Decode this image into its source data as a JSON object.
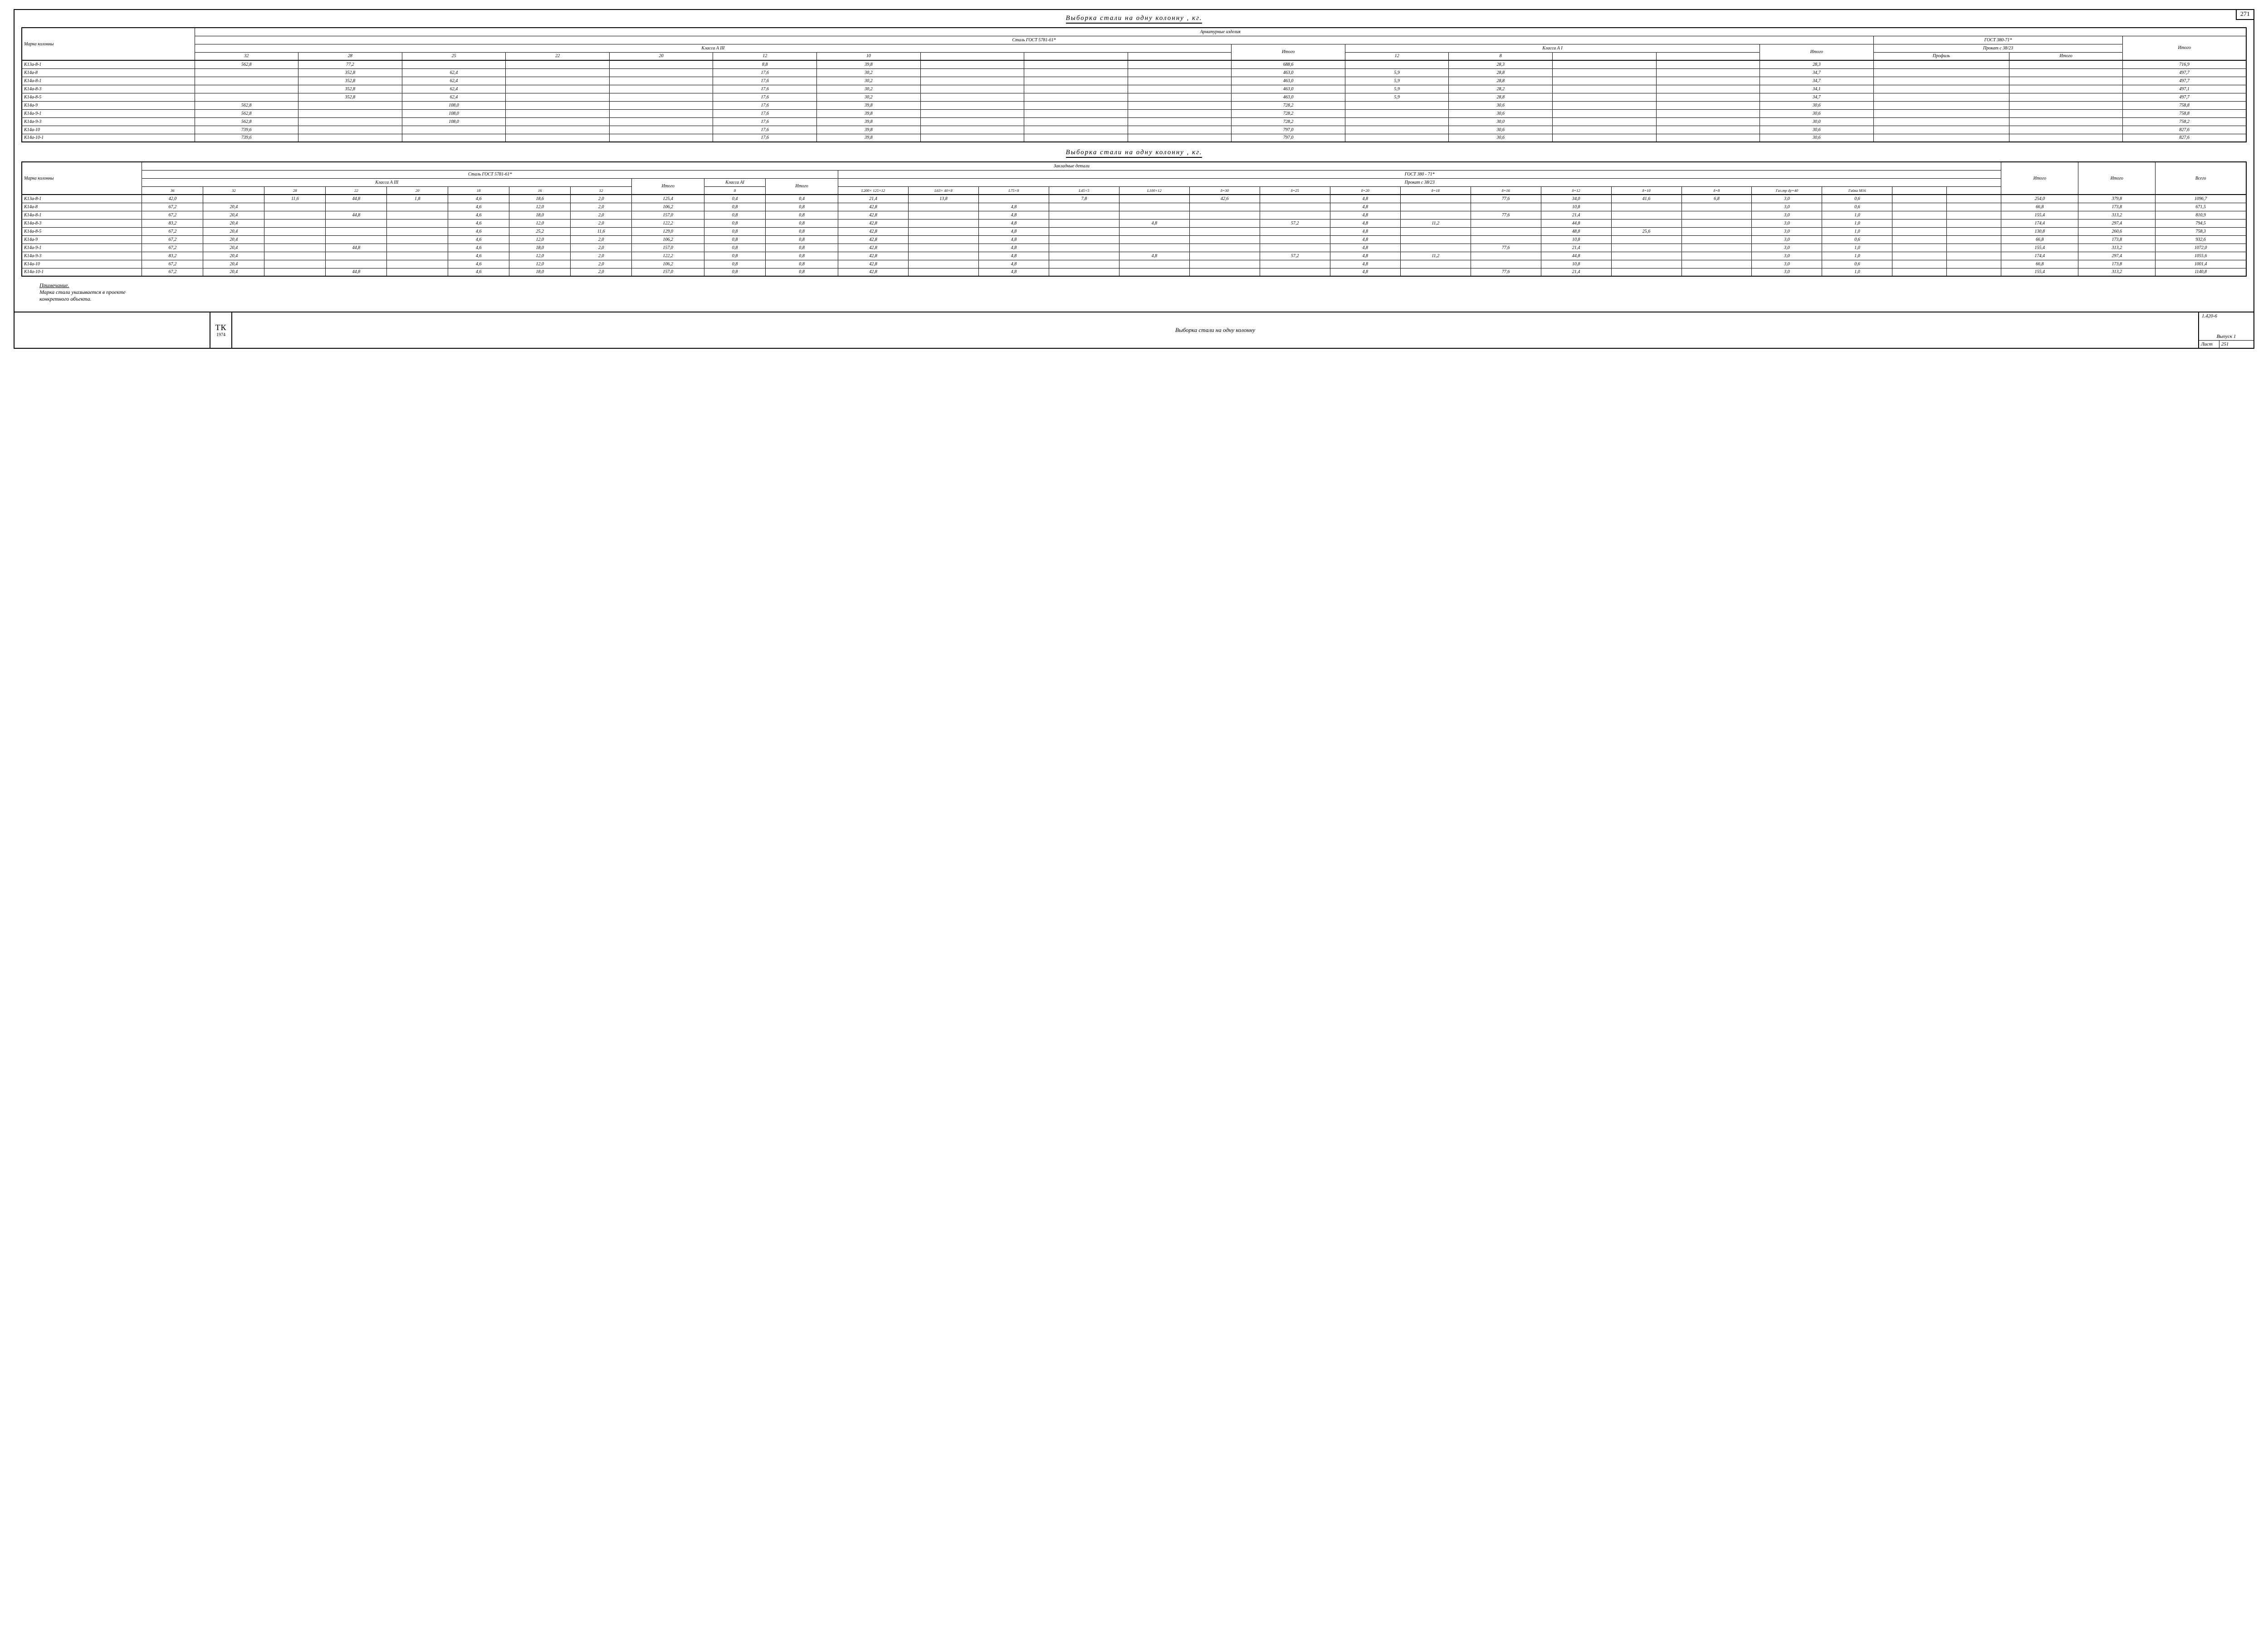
{
  "page_corner": "271",
  "title_main": "Выборка   стали   на   одну   колонну , кг.",
  "table1": {
    "super_header": "Арматурные   изделия",
    "group_steel": "Сталь    ГОСТ 5781-61*",
    "group_gost380": "ГОСТ  380-71*",
    "class_a3": "Класса А III",
    "class_a1": "Класса А I",
    "prokat": "Прокат с 38/23",
    "col_mark": "Марка колонны",
    "diam": "⌀ мм",
    "profile": "Профиль",
    "itogo": "Итого",
    "a3_diams": [
      "32",
      "28",
      "25",
      "22",
      "20",
      "12",
      "10",
      "",
      "",
      ""
    ],
    "a1_diams": [
      "12",
      "8",
      "",
      ""
    ],
    "rows": [
      {
        "m": "К13а-8-1",
        "a3": [
          "562,8",
          "77,2",
          "",
          "",
          "",
          "8,8",
          "39,8",
          "",
          "",
          ""
        ],
        "a3t": "688,6",
        "a1": [
          "",
          "28,3",
          "",
          ""
        ],
        "a1t": "28,3",
        "p": "",
        "pt": "",
        "it": "716,9"
      },
      {
        "m": "К14а-8",
        "a3": [
          "",
          "352,8",
          "62,4",
          "",
          "",
          "17,6",
          "30,2",
          "",
          "",
          ""
        ],
        "a3t": "463,0",
        "a1": [
          "5,9",
          "28,8",
          "",
          ""
        ],
        "a1t": "34,7",
        "p": "",
        "pt": "",
        "it": "497,7"
      },
      {
        "m": "К14а-8-1",
        "a3": [
          "",
          "352,8",
          "62,4",
          "",
          "",
          "17,6",
          "30,2",
          "",
          "",
          ""
        ],
        "a3t": "463,0",
        "a1": [
          "5,9",
          "28,8",
          "",
          ""
        ],
        "a1t": "34,7",
        "p": "",
        "pt": "",
        "it": "497,7"
      },
      {
        "m": "К14а-8-3",
        "a3": [
          "",
          "352,8",
          "62,4",
          "",
          "",
          "17,6",
          "30,2",
          "",
          "",
          ""
        ],
        "a3t": "463,0",
        "a1": [
          "5,9",
          "28,2",
          "",
          ""
        ],
        "a1t": "34,1",
        "p": "",
        "pt": "",
        "it": "497,1"
      },
      {
        "m": "К14а-8-5",
        "a3": [
          "",
          "352,8",
          "62,4",
          "",
          "",
          "17,6",
          "30,2",
          "",
          "",
          ""
        ],
        "a3t": "463,0",
        "a1": [
          "5,9",
          "28,8",
          "",
          ""
        ],
        "a1t": "34,7",
        "p": "",
        "pt": "",
        "it": "497,7"
      },
      {
        "m": "К14а-9",
        "a3": [
          "562,8",
          "",
          "108,0",
          "",
          "",
          "17,6",
          "39,8",
          "",
          "",
          ""
        ],
        "a3t": "728,2",
        "a1": [
          "",
          "30,6",
          "",
          ""
        ],
        "a1t": "30,6",
        "p": "",
        "pt": "",
        "it": "758,8"
      },
      {
        "m": "К14а-9-1",
        "a3": [
          "562,8",
          "",
          "108,0",
          "",
          "",
          "17,6",
          "39,8",
          "",
          "",
          ""
        ],
        "a3t": "728,2",
        "a1": [
          "",
          "30,6",
          "",
          ""
        ],
        "a1t": "30,6",
        "p": "",
        "pt": "",
        "it": "758,8"
      },
      {
        "m": "К14а-9-3",
        "a3": [
          "562,8",
          "",
          "108,0",
          "",
          "",
          "17,6",
          "39,8",
          "",
          "",
          ""
        ],
        "a3t": "728,2",
        "a1": [
          "",
          "30,0",
          "",
          ""
        ],
        "a1t": "30,0",
        "p": "",
        "pt": "",
        "it": "758,2"
      },
      {
        "m": "К14а-10",
        "a3": [
          "739,6",
          "",
          "",
          "",
          "",
          "17,6",
          "39,8",
          "",
          "",
          ""
        ],
        "a3t": "797,0",
        "a1": [
          "",
          "30,6",
          "",
          ""
        ],
        "a1t": "30,6",
        "p": "",
        "pt": "",
        "it": "827,6"
      },
      {
        "m": "К14а-10-1",
        "a3": [
          "739,6",
          "",
          "",
          "",
          "",
          "17,6",
          "39,8",
          "",
          "",
          ""
        ],
        "a3t": "797,0",
        "a1": [
          "",
          "30,6",
          "",
          ""
        ],
        "a1t": "30,6",
        "p": "",
        "pt": "",
        "it": "827,6"
      }
    ]
  },
  "title_mid": "Выборка  стали  на  одну  колонну , кг.",
  "table2": {
    "super_header": "Закладные   детали",
    "group_5781": "Сталь  ГОСТ 5781-61*",
    "group_380": "ГОСТ 380 - 71*",
    "class_a3": "Класса А III",
    "class_a1": "Класса АI",
    "prokat": "Прокат с 38/23",
    "col_mark": "Марка колонны",
    "diam": "⌀ мм",
    "diam8": "⌀мм",
    "profile": "Профиль",
    "itogo": "Итого",
    "itogo2": "Итого",
    "vsego": "Всего",
    "a3_diams": [
      "36",
      "32",
      "28",
      "22",
      "20",
      "18",
      "16",
      "12"
    ],
    "a1_diams": [
      "8"
    ],
    "prof_cols": [
      "L200× 125×12",
      "L63× 40×8",
      "L75×8",
      "L45×5",
      "L100×12",
      "δ=30",
      "δ=25",
      "δ=20",
      "δ=18",
      "δ=16",
      "δ=12",
      "δ=10",
      "δ=8",
      "Газ.тр dy=40",
      "Гайка М16",
      "",
      ""
    ],
    "rows": [
      {
        "m": "К13а-8-1",
        "a3": [
          "42,0",
          "",
          "11,6",
          "44,8",
          "1,8",
          "4,6",
          "18,6",
          "2,0"
        ],
        "a3t": "125,4",
        "a1": [
          "0,4"
        ],
        "a1t": "0,4",
        "p": [
          "21,4",
          "13,8",
          "",
          "7,8",
          "",
          "42,6",
          "",
          "4,8",
          "",
          "77,6",
          "34,0",
          "41,6",
          "6,8",
          "3,0",
          "0,6",
          "",
          ""
        ],
        "pt": "254,0",
        "it": "379,8",
        "tot": "1096,7"
      },
      {
        "m": "К14а-8",
        "a3": [
          "67,2",
          "20,4",
          "",
          "",
          "",
          "4,6",
          "12,0",
          "2,0"
        ],
        "a3t": "106,2",
        "a1": [
          "0,8"
        ],
        "a1t": "0,8",
        "p": [
          "42,8",
          "",
          "4,8",
          "",
          "",
          "",
          "",
          "4,8",
          "",
          "",
          "10,8",
          "",
          "",
          "3,0",
          "0,6",
          "",
          ""
        ],
        "pt": "66,8",
        "it": "173,8",
        "tot": "671,5"
      },
      {
        "m": "К14а-8-1",
        "a3": [
          "67,2",
          "20,4",
          "",
          "44,8",
          "",
          "4,6",
          "18,0",
          "2,0"
        ],
        "a3t": "157,0",
        "a1": [
          "0,8"
        ],
        "a1t": "0,8",
        "p": [
          "42,8",
          "",
          "4,8",
          "",
          "",
          "",
          "",
          "4,8",
          "",
          "77,6",
          "21,4",
          "",
          "",
          "3,0",
          "1,0",
          "",
          ""
        ],
        "pt": "155,4",
        "it": "313,2",
        "tot": "810,9"
      },
      {
        "m": "К14а-8-3",
        "a3": [
          "83,2",
          "20,4",
          "",
          "",
          "",
          "4,6",
          "12,0",
          "2,0"
        ],
        "a3t": "122,2",
        "a1": [
          "0,8"
        ],
        "a1t": "0,8",
        "p": [
          "42,8",
          "",
          "4,8",
          "",
          "4,8",
          "",
          "57,2",
          "4,8",
          "11,2",
          "",
          "44,8",
          "",
          "",
          "3,0",
          "1,0",
          "",
          ""
        ],
        "pt": "174,4",
        "it": "297,4",
        "tot": "794,5"
      },
      {
        "m": "К14а-8-5",
        "a3": [
          "67,2",
          "20,4",
          "",
          "",
          "",
          "4,6",
          "25,2",
          "11,6"
        ],
        "a3t": "129,0",
        "a1": [
          "0,8"
        ],
        "a1t": "0,8",
        "p": [
          "42,8",
          "",
          "4,8",
          "",
          "",
          "",
          "",
          "4,8",
          "",
          "",
          "48,8",
          "25,6",
          "",
          "3,0",
          "1,0",
          "",
          ""
        ],
        "pt": "130,8",
        "it": "260,6",
        "tot": "758,3"
      },
      {
        "m": "К14а-9",
        "a3": [
          "67,2",
          "20,4",
          "",
          "",
          "",
          "4,6",
          "12,0",
          "2,0"
        ],
        "a3t": "106,2",
        "a1": [
          "0,8"
        ],
        "a1t": "0,8",
        "p": [
          "42,8",
          "",
          "4,8",
          "",
          "",
          "",
          "",
          "4,8",
          "",
          "",
          "10,8",
          "",
          "",
          "3,0",
          "0,6",
          "",
          ""
        ],
        "pt": "66,8",
        "it": "173,8",
        "tot": "932,6"
      },
      {
        "m": "К14а-9-1",
        "a3": [
          "67,2",
          "20,4",
          "",
          "44,8",
          "",
          "4,6",
          "18,0",
          "2,0"
        ],
        "a3t": "157,0",
        "a1": [
          "0,8"
        ],
        "a1t": "0,8",
        "p": [
          "42,8",
          "",
          "4,8",
          "",
          "",
          "",
          "",
          "4,8",
          "",
          "77,6",
          "21,4",
          "",
          "",
          "3,0",
          "1,0",
          "",
          ""
        ],
        "pt": "155,4",
        "it": "313,2",
        "tot": "1072,0"
      },
      {
        "m": "К14а-9-3",
        "a3": [
          "83,2",
          "20,4",
          "",
          "",
          "",
          "4,6",
          "12,0",
          "2,0"
        ],
        "a3t": "122,2",
        "a1": [
          "0,8"
        ],
        "a1t": "0,8",
        "p": [
          "42,8",
          "",
          "4,8",
          "",
          "4,8",
          "",
          "57,2",
          "4,8",
          "11,2",
          "",
          "44,8",
          "",
          "",
          "3,0",
          "1,0",
          "",
          ""
        ],
        "pt": "174,4",
        "it": "297,4",
        "tot": "1055,6"
      },
      {
        "m": "К14а-10",
        "a3": [
          "67,2",
          "20,4",
          "",
          "",
          "",
          "4,6",
          "12,0",
          "2,0"
        ],
        "a3t": "106,2",
        "a1": [
          "0,8"
        ],
        "a1t": "0,8",
        "p": [
          "42,8",
          "",
          "4,8",
          "",
          "",
          "",
          "",
          "4,8",
          "",
          "",
          "10,8",
          "",
          "",
          "3,0",
          "0,6",
          "",
          ""
        ],
        "pt": "66,8",
        "it": "173,8",
        "tot": "1001,4"
      },
      {
        "m": "К14а-10-1",
        "a3": [
          "67,2",
          "20,4",
          "",
          "44,8",
          "",
          "4,6",
          "18,0",
          "2,0"
        ],
        "a3t": "157,0",
        "a1": [
          "0,8"
        ],
        "a1t": "0,8",
        "p": [
          "42,8",
          "",
          "4,8",
          "",
          "",
          "",
          "",
          "4,8",
          "",
          "77,6",
          "21,4",
          "",
          "",
          "3,0",
          "1,0",
          "",
          ""
        ],
        "pt": "155,4",
        "it": "313,2",
        "tot": "1140,8"
      }
    ]
  },
  "note_title": "Примечание.",
  "note_body1": "Марка стали указывается в проекте",
  "note_body2": "конкретного объекта.",
  "titleblock": {
    "tk": "ТК",
    "year": "1974",
    "main": "Выборка  стали   на   одну  колонну",
    "series": "1.420-6",
    "issue": "Выпуск 1",
    "sheet_label": "Лист",
    "sheet": "251"
  }
}
